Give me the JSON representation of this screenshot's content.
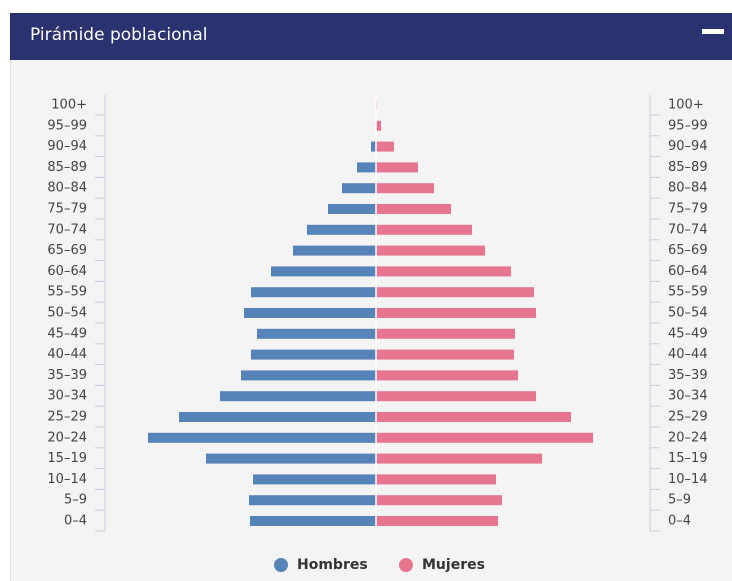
{
  "chart_data": {
    "type": "pyramid",
    "title": "Pirámide poblacional",
    "categories": [
      "100+",
      "95–99",
      "90–94",
      "85–89",
      "80–84",
      "75–79",
      "70–74",
      "65–69",
      "60–64",
      "55–59",
      "50–54",
      "45–49",
      "40–44",
      "35–39",
      "30–34",
      "25–29",
      "20–24",
      "15–19",
      "10–14",
      "5–9",
      "0–4"
    ],
    "series": [
      {
        "name": "Hombres",
        "color": "#5683b8",
        "values": [
          0,
          0,
          5,
          19,
          34,
          48,
          69,
          83,
          105,
          125,
          132,
          119,
          125,
          135,
          156,
          197,
          228,
          170,
          123,
          127,
          126
        ]
      },
      {
        "name": "Mujeres",
        "color": "#e8758f",
        "values": [
          1,
          5,
          18,
          42,
          58,
          75,
          96,
          109,
          135,
          158,
          160,
          139,
          138,
          142,
          160,
          195,
          217,
          166,
          120,
          126,
          122
        ]
      }
    ]
  }
}
